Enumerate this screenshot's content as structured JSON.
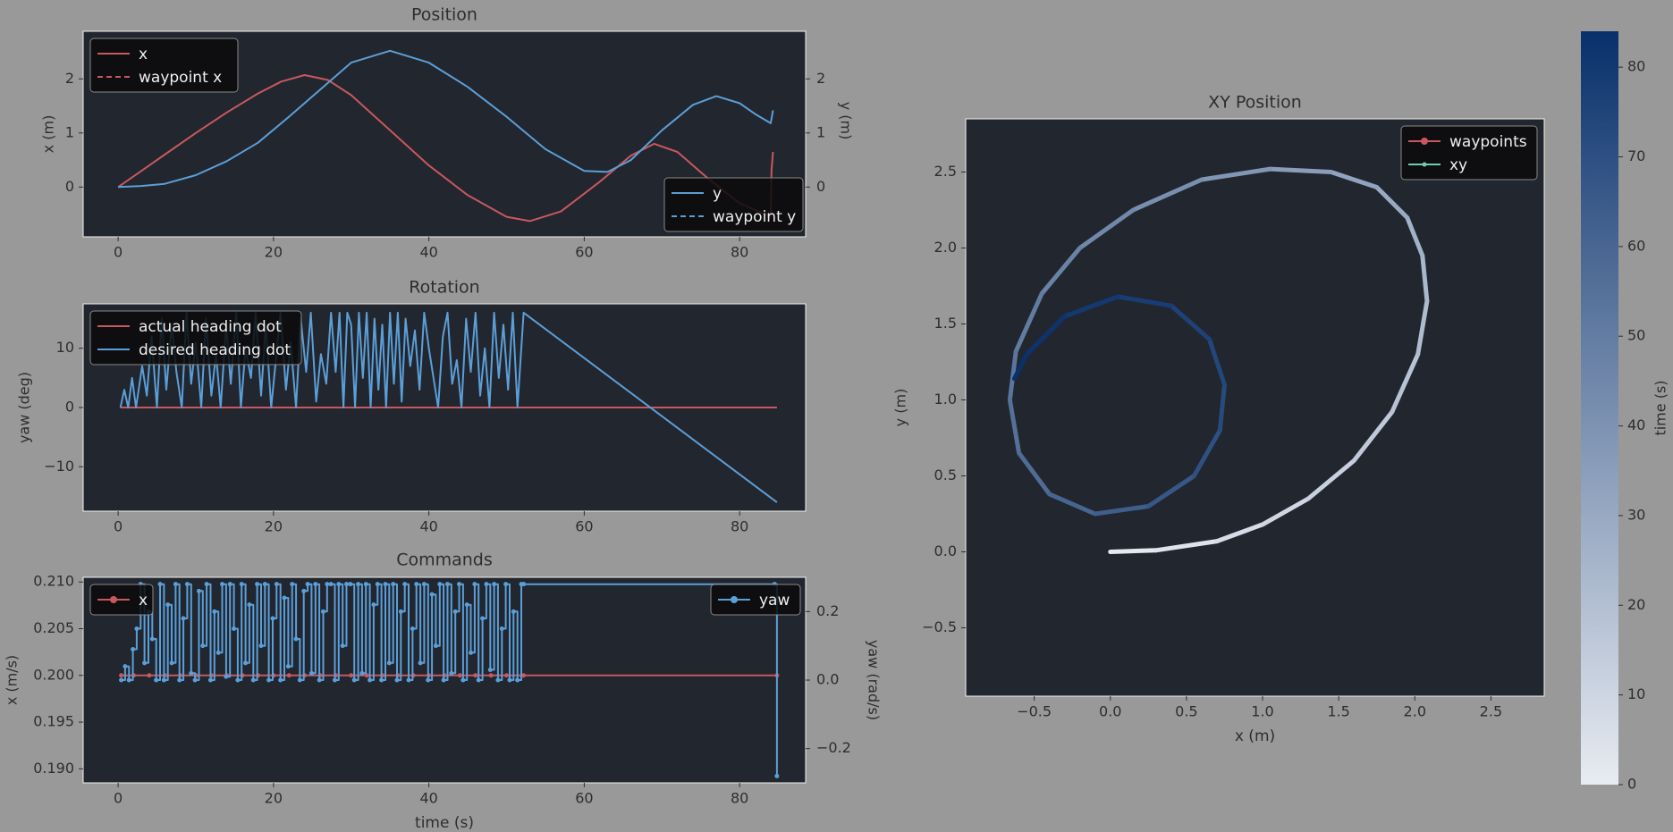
{
  "colors": {
    "figure_bg": "#999999",
    "axes_bg": "#22262e",
    "text": "#2b2b2b",
    "red": "#c8585e",
    "blue": "#5b9fd8",
    "legend_bg": "#0b0b0b",
    "legend_text": "#eeeeee"
  },
  "chart_data": [
    {
      "id": "position",
      "type": "line",
      "title": "Position",
      "xlabel": "",
      "ylabel": "x (m)",
      "ylabel_right": "y (m)",
      "xlim": [
        -4.5,
        88.5
      ],
      "ylim": [
        -0.92,
        2.88
      ],
      "ylim_right": [
        -0.92,
        2.88
      ],
      "xticks": [
        0,
        20,
        40,
        60,
        80
      ],
      "yticks": [
        0,
        1,
        2
      ],
      "yticks_right": [
        0,
        1,
        2
      ],
      "legend_left": {
        "position": "upper-left",
        "entries": [
          {
            "label": "x",
            "color": "#c8585e",
            "dash": false
          },
          {
            "label": "waypoint x",
            "color": "#c8585e",
            "dash": true
          }
        ]
      },
      "legend_right": {
        "position": "lower-right",
        "entries": [
          {
            "label": "y",
            "color": "#5b9fd8",
            "dash": false
          },
          {
            "label": "waypoint y",
            "color": "#5b9fd8",
            "dash": true
          }
        ]
      },
      "series": [
        {
          "name": "x",
          "color": "#c8585e",
          "axis": "left",
          "x": [
            0,
            3,
            6,
            10,
            14,
            18,
            21,
            24,
            27,
            30,
            35,
            40,
            45,
            50,
            53,
            57,
            62,
            66,
            69,
            72,
            76,
            80,
            84,
            84.1,
            84.3
          ],
          "y": [
            0,
            0.3,
            0.6,
            1.0,
            1.38,
            1.73,
            1.95,
            2.07,
            1.98,
            1.7,
            1.05,
            0.4,
            -0.15,
            -0.55,
            -0.63,
            -0.45,
            0.1,
            0.58,
            0.8,
            0.65,
            0.15,
            -0.3,
            -0.55,
            0.3,
            0.65
          ]
        },
        {
          "name": "y",
          "color": "#5b9fd8",
          "axis": "right",
          "x": [
            0,
            3,
            6,
            10,
            14,
            18,
            22,
            26,
            30,
            35,
            40,
            45,
            50,
            55,
            60,
            63,
            66,
            70,
            74,
            77,
            80,
            82,
            84,
            84.3
          ],
          "y": [
            0,
            0.02,
            0.06,
            0.22,
            0.48,
            0.82,
            1.3,
            1.8,
            2.3,
            2.52,
            2.3,
            1.85,
            1.3,
            0.7,
            0.3,
            0.28,
            0.5,
            1.05,
            1.52,
            1.68,
            1.55,
            1.35,
            1.18,
            1.42
          ]
        }
      ]
    },
    {
      "id": "rotation",
      "type": "line",
      "title": "Rotation",
      "xlabel": "",
      "ylabel": "yaw (deg)",
      "xlim": [
        -4.5,
        88.5
      ],
      "ylim": [
        -17.5,
        17.5
      ],
      "xticks": [
        0,
        20,
        40,
        60,
        80
      ],
      "yticks": [
        -10,
        0,
        10
      ],
      "legend": {
        "position": "upper-left",
        "entries": [
          {
            "label": "actual heading dot",
            "color": "#c8585e"
          },
          {
            "label": "desired heading dot",
            "color": "#5b9fd8"
          }
        ]
      },
      "series": [
        {
          "name": "actual heading dot",
          "color": "#c8585e",
          "x": [
            0.3,
            84.8
          ],
          "y": [
            0,
            0
          ]
        },
        {
          "name": "desired heading dot",
          "color": "#5b9fd8",
          "x": [
            0.3,
            0.8,
            1.3,
            1.8,
            2.3,
            3.1,
            3.7,
            4.3,
            5.0,
            5.6,
            6.2,
            6.9,
            7.5,
            8.2,
            8.8,
            9.4,
            10.0,
            10.7,
            11.3,
            12.0,
            12.6,
            13.2,
            13.9,
            14.5,
            15.2,
            15.8,
            16.4,
            17.1,
            17.7,
            18.4,
            19.0,
            19.7,
            20.3,
            20.9,
            21.6,
            22.2,
            22.9,
            23.5,
            24.2,
            24.8,
            25.5,
            26.1,
            26.8,
            27.4,
            28.0,
            28.5,
            29.0,
            29.5,
            30.0,
            30.5,
            31.0,
            31.5,
            32.0,
            32.5,
            33.0,
            33.5,
            34.0,
            34.5,
            35.0,
            35.5,
            36.0,
            36.5,
            37.0,
            37.6,
            38.2,
            38.8,
            39.4,
            40.0,
            40.6,
            41.2,
            41.8,
            42.4,
            43.0,
            43.6,
            44.2,
            44.8,
            45.4,
            46.0,
            46.6,
            47.2,
            47.8,
            48.4,
            49.0,
            49.6,
            50.2,
            50.8,
            51.4,
            52.2,
            84.8
          ],
          "y": [
            0,
            3,
            0,
            5,
            0,
            7,
            2,
            12,
            0,
            15,
            3,
            14,
            6,
            0,
            16,
            4,
            11,
            0,
            15,
            2,
            9,
            0,
            14,
            4,
            16,
            0,
            10,
            5,
            16,
            2,
            14,
            0,
            8,
            16,
            3,
            11,
            0,
            15,
            6,
            16,
            1,
            9,
            4,
            16,
            6,
            16,
            0,
            16,
            14,
            0,
            16,
            5,
            16,
            0,
            15,
            3,
            14,
            0,
            16,
            4,
            16,
            1,
            15,
            7,
            13,
            3,
            16,
            10,
            5,
            0,
            12,
            16,
            4,
            8,
            0,
            15,
            6,
            16,
            2,
            10,
            0,
            16,
            5,
            14,
            3,
            16,
            0,
            16,
            -16
          ]
        }
      ]
    },
    {
      "id": "commands",
      "type": "line",
      "title": "Commands",
      "xlabel": "time (s)",
      "ylabel": "x (m/s)",
      "ylabel_right": "yaw (rad/s)",
      "xlim": [
        -4.5,
        88.5
      ],
      "ylim": [
        0.1885,
        0.2105
      ],
      "ylim_right": [
        -0.3,
        0.3
      ],
      "xticks": [
        0,
        20,
        40,
        60,
        80
      ],
      "yticks": [
        0.19,
        0.195,
        0.2,
        0.205,
        0.21
      ],
      "ytick_labels": [
        "0.190",
        "0.195",
        "0.200",
        "0.205",
        "0.210"
      ],
      "yticks_right": [
        -0.2,
        0.0,
        0.2
      ],
      "ytick_labels_right": [
        "−0.2",
        "0.0",
        "0.2"
      ],
      "legend_left": {
        "position": "upper-left",
        "entries": [
          {
            "label": "x",
            "color": "#c8585e",
            "marker": true
          }
        ]
      },
      "legend_right": {
        "position": "upper-right",
        "entries": [
          {
            "label": "yaw",
            "color": "#5b9fd8",
            "marker": true
          }
        ]
      },
      "series": [
        {
          "name": "x",
          "color": "#c8585e",
          "axis": "left",
          "x": [
            0.4,
            2,
            4,
            6,
            8,
            10,
            12,
            14,
            16,
            18,
            20,
            22,
            24,
            26,
            28,
            30,
            32,
            34,
            36,
            38,
            40,
            42,
            44,
            46,
            48,
            50,
            52.2,
            84.8
          ],
          "y": [
            0.2,
            0.2,
            0.2,
            0.2,
            0.2,
            0.2,
            0.2,
            0.2,
            0.2,
            0.2,
            0.2,
            0.2,
            0.2,
            0.2,
            0.2,
            0.2,
            0.2,
            0.2,
            0.2,
            0.2,
            0.2,
            0.2,
            0.2,
            0.2,
            0.2,
            0.2,
            0.2,
            0.2
          ]
        },
        {
          "name": "yaw",
          "color": "#5b9fd8",
          "axis": "right",
          "x": [
            0.4,
            0.9,
            1.4,
            1.9,
            2.4,
            2.9,
            3.4,
            3.9,
            4.4,
            4.9,
            5.4,
            5.9,
            6.4,
            6.9,
            7.4,
            7.9,
            8.4,
            8.9,
            9.4,
            9.9,
            10.4,
            10.9,
            11.4,
            11.9,
            12.4,
            12.9,
            13.4,
            13.9,
            14.4,
            14.9,
            15.4,
            15.9,
            16.4,
            16.9,
            17.4,
            17.9,
            18.4,
            18.9,
            19.4,
            19.9,
            20.4,
            20.9,
            21.4,
            21.9,
            22.4,
            22.9,
            23.4,
            23.9,
            24.4,
            24.9,
            25.4,
            25.9,
            26.4,
            26.9,
            27.4,
            27.9,
            28.4,
            28.9,
            29.4,
            29.9,
            30.4,
            30.9,
            31.4,
            31.9,
            32.4,
            32.9,
            33.4,
            33.9,
            34.4,
            34.9,
            35.4,
            35.9,
            36.4,
            36.9,
            37.4,
            37.9,
            38.4,
            38.9,
            39.4,
            39.9,
            40.4,
            40.9,
            41.4,
            41.9,
            42.4,
            42.9,
            43.4,
            43.9,
            44.4,
            44.9,
            45.4,
            45.9,
            46.4,
            46.9,
            47.4,
            47.9,
            48.4,
            48.9,
            49.4,
            49.9,
            50.4,
            50.9,
            51.4,
            51.9,
            52.2,
            84.5,
            84.8
          ],
          "y": [
            0,
            0.04,
            0,
            0.09,
            0.15,
            0.28,
            0.05,
            0.2,
            0.12,
            0,
            0.28,
            0,
            0.22,
            0.05,
            0.28,
            0,
            0.18,
            0.28,
            0.02,
            0,
            0.26,
            0.1,
            0.28,
            0,
            0.2,
            0.08,
            0.28,
            0.01,
            0.28,
            0.15,
            0,
            0.28,
            0.05,
            0.22,
            0,
            0.28,
            0.1,
            0.28,
            0,
            0.18,
            0.28,
            0,
            0.24,
            0.04,
            0.28,
            0.12,
            0,
            0.26,
            0.28,
            0.02,
            0.28,
            0,
            0.2,
            0.28,
            0.28,
            0,
            0.28,
            0.1,
            0.28,
            0.28,
            0,
            0.28,
            0.02,
            0.28,
            0,
            0.22,
            0.28,
            0,
            0.28,
            0.05,
            0.28,
            0,
            0.2,
            0.28,
            0,
            0.15,
            0.28,
            0.05,
            0.28,
            0,
            0.25,
            0.1,
            0.28,
            0,
            0.28,
            0.02,
            0.2,
            0.28,
            0,
            0.22,
            0.08,
            0.28,
            0,
            0.18,
            0.28,
            0.03,
            0.28,
            0,
            0.15,
            0.28,
            0,
            0.2,
            0,
            0.28,
            0.28,
            0.28,
            -0.28
          ]
        }
      ]
    },
    {
      "id": "xy",
      "type": "scatter",
      "title": "XY Position",
      "xlabel": "x (m)",
      "ylabel": "y (m)",
      "xlim": [
        -0.95,
        2.85
      ],
      "ylim": [
        -0.95,
        2.85
      ],
      "xticks": [
        -0.5,
        0.0,
        0.5,
        1.0,
        1.5,
        2.0,
        2.5
      ],
      "yticks": [
        -0.5,
        0.0,
        0.5,
        1.0,
        1.5,
        2.0,
        2.5
      ],
      "legend": {
        "position": "upper-right",
        "entries": [
          {
            "label": "waypoints",
            "color": "#c8585e",
            "marker": "line-dot"
          },
          {
            "label": "xy",
            "color": "#6fcfb0",
            "marker": "dot"
          }
        ]
      },
      "colorbar": {
        "label": "time (s)",
        "min": 0,
        "max": 84,
        "ticks": [
          0,
          10,
          20,
          30,
          40,
          50,
          60,
          70,
          80
        ],
        "color_low": "#e8ecf2",
        "color_high": "#08306b"
      },
      "trajectory": {
        "x": [
          0,
          0.3,
          0.7,
          1.0,
          1.3,
          1.6,
          1.85,
          2.02,
          2.08,
          2.05,
          1.95,
          1.75,
          1.45,
          1.05,
          0.6,
          0.15,
          -0.2,
          -0.45,
          -0.62,
          -0.66,
          -0.6,
          -0.4,
          -0.1,
          0.25,
          0.55,
          0.72,
          0.75,
          0.65,
          0.4,
          0.05,
          -0.3,
          -0.55,
          -0.63
        ],
        "y": [
          0,
          0.01,
          0.07,
          0.18,
          0.35,
          0.6,
          0.92,
          1.3,
          1.65,
          1.95,
          2.2,
          2.4,
          2.5,
          2.52,
          2.45,
          2.25,
          2.0,
          1.7,
          1.32,
          1.0,
          0.65,
          0.38,
          0.25,
          0.3,
          0.5,
          0.8,
          1.1,
          1.4,
          1.62,
          1.68,
          1.55,
          1.3,
          1.14
        ],
        "t": [
          0,
          2.5,
          5,
          8,
          11,
          14,
          17,
          20,
          22.5,
          25,
          28,
          31,
          34,
          37,
          40,
          43,
          46,
          49,
          52,
          54,
          56,
          59,
          62,
          65,
          68,
          71,
          73,
          75,
          77,
          79,
          81,
          83,
          84.5
        ]
      }
    }
  ]
}
